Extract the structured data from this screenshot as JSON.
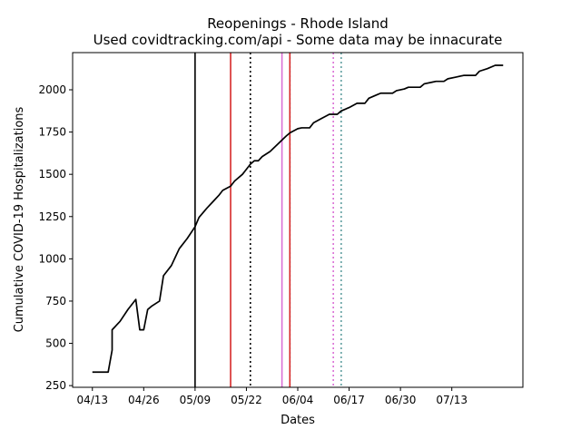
{
  "chart_data": {
    "type": "line",
    "title": "Reopenings - Rhode Island",
    "subtitle": "Used covidtracking.com/api - Some data may be innacurate",
    "xlabel": "Dates",
    "ylabel": "Cumulative COVID-19 Hospitalizations",
    "xlim": [
      "2020-04-08",
      "2020-07-31"
    ],
    "ylim": [
      240,
      2220
    ],
    "grid": false,
    "legend": "none",
    "x_ticks": [
      {
        "date": "2020-04-13",
        "label": "04/13"
      },
      {
        "date": "2020-04-26",
        "label": "04/26"
      },
      {
        "date": "2020-05-09",
        "label": "05/09"
      },
      {
        "date": "2020-05-22",
        "label": "05/22"
      },
      {
        "date": "2020-06-04",
        "label": "06/04"
      },
      {
        "date": "2020-06-17",
        "label": "06/17"
      },
      {
        "date": "2020-06-30",
        "label": "06/30"
      },
      {
        "date": "2020-07-13",
        "label": "07/13"
      }
    ],
    "y_ticks": [
      250,
      500,
      750,
      1000,
      1250,
      1500,
      1750,
      2000
    ],
    "series": [
      {
        "color": "#000000",
        "points": [
          [
            "2020-04-13",
            330
          ],
          [
            "2020-04-17",
            330
          ],
          [
            "2020-04-18",
            460
          ],
          [
            "2020-04-18",
            580
          ],
          [
            "2020-04-20",
            630
          ],
          [
            "2020-04-22",
            700
          ],
          [
            "2020-04-24",
            760
          ],
          [
            "2020-04-25",
            580
          ],
          [
            "2020-04-26",
            580
          ],
          [
            "2020-04-27",
            700
          ],
          [
            "2020-04-28",
            720
          ],
          [
            "2020-04-30",
            750
          ],
          [
            "2020-05-01",
            900
          ],
          [
            "2020-05-03",
            960
          ],
          [
            "2020-05-04",
            1010
          ],
          [
            "2020-05-05",
            1060
          ],
          [
            "2020-05-07",
            1120
          ],
          [
            "2020-05-09",
            1190
          ],
          [
            "2020-05-10",
            1245
          ],
          [
            "2020-05-12",
            1300
          ],
          [
            "2020-05-14",
            1350
          ],
          [
            "2020-05-15",
            1375
          ],
          [
            "2020-05-16",
            1405
          ],
          [
            "2020-05-18",
            1430
          ],
          [
            "2020-05-19",
            1460
          ],
          [
            "2020-05-21",
            1500
          ],
          [
            "2020-05-22",
            1530
          ],
          [
            "2020-05-23",
            1560
          ],
          [
            "2020-05-24",
            1580
          ],
          [
            "2020-05-25",
            1580
          ],
          [
            "2020-05-26",
            1605
          ],
          [
            "2020-05-28",
            1635
          ],
          [
            "2020-05-30",
            1680
          ],
          [
            "2020-06-01",
            1725
          ],
          [
            "2020-06-02",
            1745
          ],
          [
            "2020-06-04",
            1770
          ],
          [
            "2020-06-05",
            1775
          ],
          [
            "2020-06-07",
            1775
          ],
          [
            "2020-06-08",
            1805
          ],
          [
            "2020-06-10",
            1830
          ],
          [
            "2020-06-12",
            1855
          ],
          [
            "2020-06-14",
            1855
          ],
          [
            "2020-06-15",
            1875
          ],
          [
            "2020-06-17",
            1895
          ],
          [
            "2020-06-19",
            1920
          ],
          [
            "2020-06-21",
            1920
          ],
          [
            "2020-06-22",
            1950
          ],
          [
            "2020-06-24",
            1970
          ],
          [
            "2020-06-25",
            1980
          ],
          [
            "2020-06-28",
            1980
          ],
          [
            "2020-06-29",
            1995
          ],
          [
            "2020-07-01",
            2005
          ],
          [
            "2020-07-02",
            2015
          ],
          [
            "2020-07-05",
            2015
          ],
          [
            "2020-07-06",
            2035
          ],
          [
            "2020-07-08",
            2045
          ],
          [
            "2020-07-09",
            2050
          ],
          [
            "2020-07-11",
            2050
          ],
          [
            "2020-07-12",
            2065
          ],
          [
            "2020-07-14",
            2075
          ],
          [
            "2020-07-16",
            2085
          ],
          [
            "2020-07-19",
            2085
          ],
          [
            "2020-07-20",
            2110
          ],
          [
            "2020-07-22",
            2125
          ],
          [
            "2020-07-24",
            2145
          ],
          [
            "2020-07-26",
            2145
          ]
        ]
      }
    ],
    "vertical_lines": [
      {
        "date": "2020-05-09",
        "color": "#000000",
        "style": "solid"
      },
      {
        "date": "2020-05-18",
        "color": "#d62728",
        "style": "solid"
      },
      {
        "date": "2020-05-23",
        "color": "#000000",
        "style": "dotted"
      },
      {
        "date": "2020-05-31",
        "color": "#da70d6",
        "style": "solid"
      },
      {
        "date": "2020-06-02",
        "color": "#7f7f7f",
        "style": "dotted"
      },
      {
        "date": "2020-06-02",
        "color": "#d62728",
        "style": "solid"
      },
      {
        "date": "2020-06-13",
        "color": "#da70d6",
        "style": "dotted"
      },
      {
        "date": "2020-06-15",
        "color": "#5f9ea0",
        "style": "dotted"
      }
    ]
  }
}
